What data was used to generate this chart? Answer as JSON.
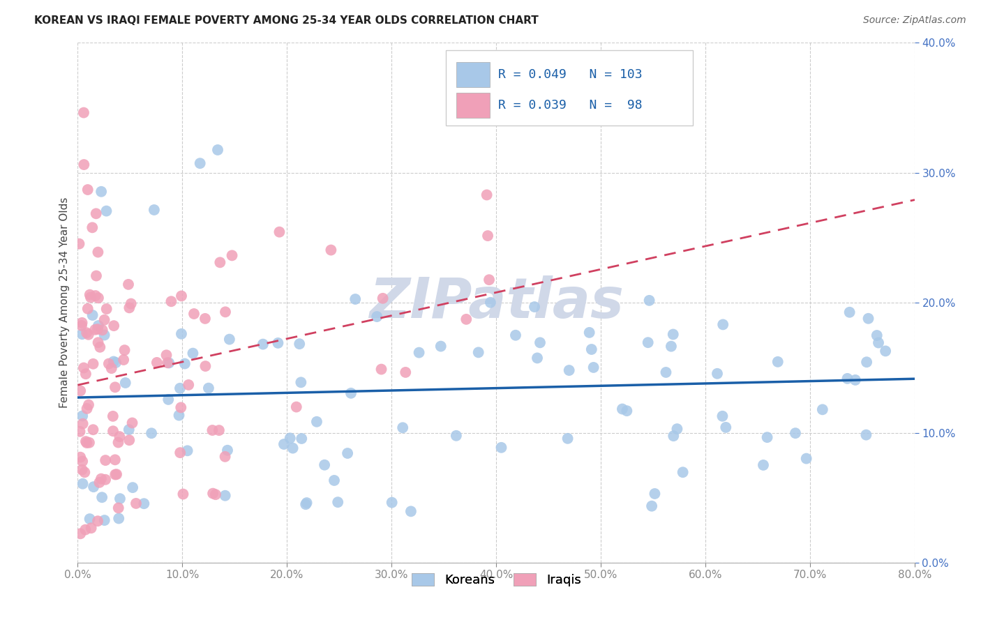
{
  "title": "KOREAN VS IRAQI FEMALE POVERTY AMONG 25-34 YEAR OLDS CORRELATION CHART",
  "source": "Source: ZipAtlas.com",
  "ylabel": "Female Poverty Among 25-34 Year Olds",
  "xlim": [
    0.0,
    0.8
  ],
  "ylim": [
    0.0,
    0.4
  ],
  "xticks": [
    0.0,
    0.1,
    0.2,
    0.3,
    0.4,
    0.5,
    0.6,
    0.7,
    0.8
  ],
  "yticks": [
    0.0,
    0.1,
    0.2,
    0.3,
    0.4
  ],
  "korean_R": 0.049,
  "korean_N": 103,
  "iraqi_R": 0.039,
  "iraqi_N": 98,
  "korean_color": "#a8c8e8",
  "iraqi_color": "#f0a0b8",
  "korean_line_color": "#1a5fa8",
  "iraqi_line_color": "#d04060",
  "watermark": "ZIPatlas",
  "watermark_color": "#d0d8e8",
  "legend_box_color": "#e8eef8",
  "legend_border_color": "#cccccc",
  "tick_color_right": "#4472c4",
  "tick_color_bottom": "#888888",
  "title_fontsize": 11,
  "source_fontsize": 10,
  "axis_label_fontsize": 11,
  "tick_fontsize": 11
}
